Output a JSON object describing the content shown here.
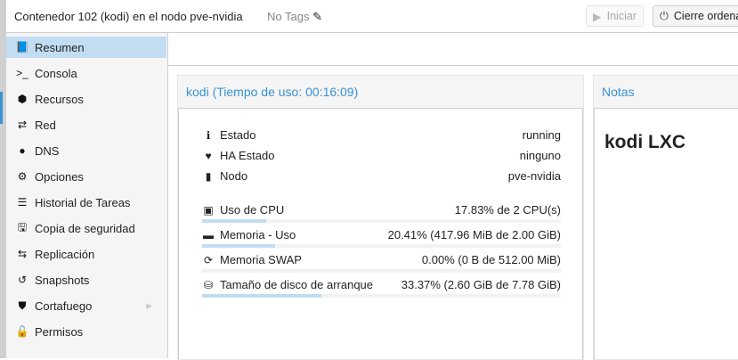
{
  "header": {
    "title": "Contenedor 102 (kodi) en el nodo pve-nvidia",
    "tags": "No Tags",
    "start_label": "Iniciar",
    "shutdown_label": "Cierre ordena"
  },
  "sidebar": {
    "items": [
      {
        "label": "Resumen",
        "icon": "book-icon",
        "glyph": "📘"
      },
      {
        "label": "Consola",
        "icon": "terminal-icon",
        "glyph": ">_"
      },
      {
        "label": "Recursos",
        "icon": "cube-icon",
        "glyph": "⬢"
      },
      {
        "label": "Red",
        "icon": "exchange-icon",
        "glyph": "⇄"
      },
      {
        "label": "DNS",
        "icon": "globe-icon",
        "glyph": "●"
      },
      {
        "label": "Opciones",
        "icon": "gear-icon",
        "glyph": "⚙"
      },
      {
        "label": "Historial de Tareas",
        "icon": "list-icon",
        "glyph": "☰"
      },
      {
        "label": "Copia de seguridad",
        "icon": "floppy-icon",
        "glyph": "🖫"
      },
      {
        "label": "Replicación",
        "icon": "retweet-icon",
        "glyph": "⇆"
      },
      {
        "label": "Snapshots",
        "icon": "history-icon",
        "glyph": "↺"
      },
      {
        "label": "Cortafuego",
        "icon": "shield-icon",
        "glyph": "⛊"
      },
      {
        "label": "Permisos",
        "icon": "unlock-icon",
        "glyph": "🔓"
      }
    ]
  },
  "status": {
    "title": "kodi (Tiempo de uso: 00:16:09)",
    "info": [
      {
        "label": "Estado",
        "value": "running",
        "icon": "info-icon",
        "glyph": "ℹ"
      },
      {
        "label": "HA Estado",
        "value": "ninguno",
        "icon": "heartbeat-icon",
        "glyph": "♥"
      },
      {
        "label": "Nodo",
        "value": "pve-nvidia",
        "icon": "server-icon",
        "glyph": "▮"
      }
    ],
    "usage": [
      {
        "label": "Uso de CPU",
        "value": "17.83% de 2 CPU(s)",
        "percent": 17.83,
        "icon": "cpu-icon",
        "glyph": "▣"
      },
      {
        "label": "Memoria - Uso",
        "value": "20.41% (417.96 MiB de 2.00 GiB)",
        "percent": 20.41,
        "icon": "memory-icon",
        "glyph": "▬"
      },
      {
        "label": "Memoria SWAP",
        "value": "0.00% (0 B de 512.00 MiB)",
        "percent": 0,
        "icon": "refresh-icon",
        "glyph": "⟳"
      },
      {
        "label": "Tamaño de disco de arranque",
        "value": "33.37% (2.60 GiB de 7.78 GiB)",
        "percent": 33.37,
        "icon": "hdd-icon",
        "glyph": "⛁"
      }
    ]
  },
  "notes": {
    "title": "Notas",
    "content": "kodi LXC"
  },
  "colors": {
    "accent": "#3892d4",
    "selected": "#c2ddf2",
    "bar": "#c0dcf0"
  }
}
